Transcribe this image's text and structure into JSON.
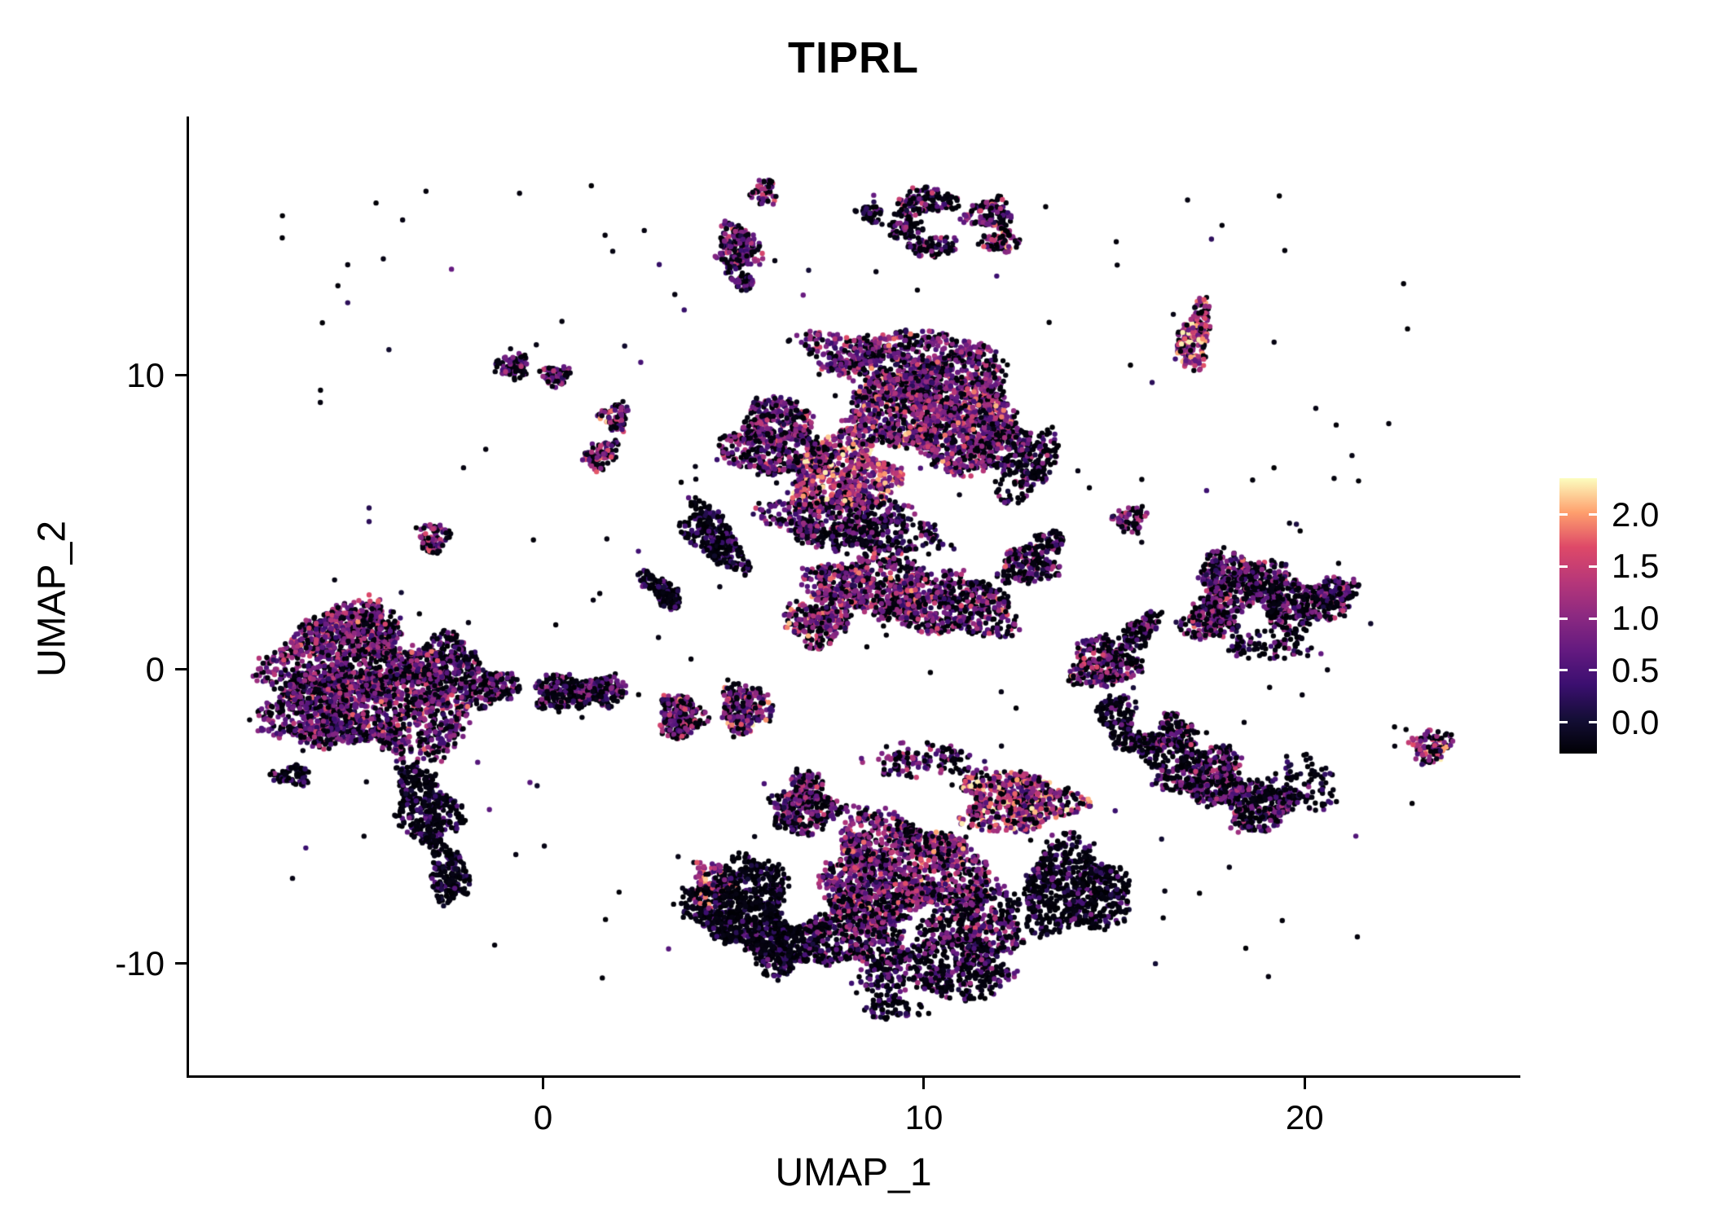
{
  "title": "TIPRL",
  "axes": {
    "x": {
      "label": "UMAP_1",
      "range": [
        -9.3,
        25.6
      ],
      "ticks": [
        0,
        10,
        20
      ],
      "tick_labels": [
        "0",
        "10",
        "20"
      ]
    },
    "y": {
      "label": "UMAP_2",
      "range": [
        -13.8,
        18.8
      ],
      "ticks": [
        -10,
        0,
        10
      ],
      "tick_labels": [
        "-10",
        "0",
        "10"
      ]
    }
  },
  "legend": {
    "tick_values": [
      2.0,
      1.5,
      1.0,
      0.5,
      0.0
    ],
    "tick_labels": [
      "2.0",
      "1.5",
      "1.0",
      "0.5",
      "0.0"
    ],
    "range_top": 2.35,
    "range_bottom": -0.3
  },
  "chart_data": {
    "type": "scatter",
    "title": "TIPRL",
    "xlabel": "UMAP_1",
    "ylabel": "UMAP_2",
    "xlim": [
      -9.3,
      25.6
    ],
    "ylim": [
      -13.8,
      18.8
    ],
    "grid": false,
    "legend_position": "right",
    "colorbar": {
      "ticks": [
        2.0,
        1.5,
        1.0,
        0.5,
        0.0
      ],
      "domain": [
        0,
        2.25
      ]
    },
    "color_scale": {
      "name": "magma",
      "stops": [
        [
          0,
          "#000004"
        ],
        [
          0.125,
          "#140e36"
        ],
        [
          0.25,
          "#3b0f70"
        ],
        [
          0.375,
          "#641a80"
        ],
        [
          0.5,
          "#8c2981"
        ],
        [
          0.625,
          "#b73779"
        ],
        [
          0.75,
          "#de4968"
        ],
        [
          0.875,
          "#fe9f6d"
        ],
        [
          1,
          "#fcfdbf"
        ]
      ]
    },
    "point_radius_px": 3.2,
    "cluster_fields": [
      "cx",
      "cy",
      "rx",
      "ry",
      "rot_deg",
      "n",
      "zero_frac",
      "expr_mean"
    ],
    "clusters": [
      [
        -5.2,
        0.4,
        1.9,
        1.6,
        0,
        900,
        0.35,
        0.95
      ],
      [
        -3.9,
        -1.3,
        1.9,
        1.7,
        0,
        950,
        0.35,
        0.95
      ],
      [
        -6.0,
        -1.4,
        1.3,
        1.3,
        0,
        500,
        0.4,
        0.9
      ],
      [
        -4.9,
        1.5,
        1.1,
        0.8,
        0,
        300,
        0.35,
        1.0
      ],
      [
        -2.6,
        0.2,
        1.0,
        0.9,
        0,
        280,
        0.5,
        0.85
      ],
      [
        -3.1,
        -4.6,
        0.75,
        1.3,
        15,
        380,
        0.72,
        0.55
      ],
      [
        -2.5,
        -6.9,
        0.5,
        1.0,
        10,
        200,
        0.8,
        0.5
      ],
      [
        -6.6,
        -3.6,
        0.5,
        0.3,
        0,
        80,
        0.65,
        0.7
      ],
      [
        -1.6,
        -0.6,
        0.9,
        0.7,
        0,
        220,
        0.55,
        0.8
      ],
      [
        0.6,
        -0.8,
        0.85,
        0.6,
        0,
        260,
        0.6,
        0.75
      ],
      [
        1.6,
        -0.7,
        0.6,
        0.5,
        0,
        150,
        0.55,
        0.8
      ],
      [
        -2.9,
        4.5,
        0.4,
        0.55,
        0,
        80,
        0.4,
        0.9
      ],
      [
        -0.8,
        10.3,
        0.45,
        0.4,
        0,
        100,
        0.45,
        0.9
      ],
      [
        0.3,
        10.0,
        0.4,
        0.35,
        0,
        80,
        0.45,
        0.9
      ],
      [
        1.9,
        8.6,
        0.35,
        0.5,
        0,
        70,
        0.35,
        1.1
      ],
      [
        1.5,
        7.3,
        0.45,
        0.55,
        -30,
        90,
        0.4,
        1.0
      ],
      [
        5.8,
        16.2,
        0.3,
        0.45,
        0,
        55,
        0.35,
        1.0
      ],
      [
        5.1,
        14.3,
        0.55,
        0.8,
        0,
        210,
        0.3,
        0.95
      ],
      [
        5.3,
        13.2,
        0.3,
        0.3,
        0,
        45,
        0.5,
        0.8
      ],
      [
        10.1,
        15.9,
        0.8,
        0.45,
        0,
        130,
        0.5,
        0.9
      ],
      [
        11.7,
        15.5,
        0.6,
        0.5,
        0,
        110,
        0.45,
        1.0
      ],
      [
        12.0,
        14.6,
        0.5,
        0.4,
        0,
        80,
        0.45,
        1.1
      ],
      [
        10.2,
        14.4,
        0.7,
        0.4,
        0,
        80,
        0.6,
        0.8
      ],
      [
        9.5,
        15.1,
        0.4,
        0.5,
        0,
        70,
        0.55,
        0.85
      ],
      [
        8.6,
        15.5,
        0.35,
        0.35,
        0,
        45,
        0.5,
        0.9
      ],
      [
        17.1,
        11.3,
        0.4,
        1.15,
        -12,
        230,
        0.25,
        1.3
      ],
      [
        10.4,
        8.8,
        2.1,
        1.8,
        0,
        1800,
        0.3,
        1.05
      ],
      [
        7.9,
        6.6,
        1.35,
        1.25,
        0,
        750,
        0.18,
        1.3
      ],
      [
        6.1,
        7.8,
        1.25,
        1.3,
        0,
        600,
        0.4,
        0.9
      ],
      [
        9.0,
        10.7,
        2.2,
        0.85,
        0,
        500,
        0.35,
        0.95
      ],
      [
        7.6,
        5.1,
        1.8,
        0.8,
        0,
        380,
        0.5,
        0.85
      ],
      [
        12.5,
        7.2,
        0.95,
        1.3,
        0,
        320,
        0.6,
        0.75
      ],
      [
        4.5,
        4.5,
        0.55,
        1.3,
        30,
        300,
        0.68,
        0.55
      ],
      [
        3.1,
        2.7,
        0.3,
        0.8,
        40,
        140,
        0.8,
        0.45
      ],
      [
        8.8,
        4.6,
        1.8,
        0.7,
        0,
        220,
        0.55,
        0.8
      ],
      [
        8.6,
        2.9,
        1.6,
        1.05,
        0,
        620,
        0.35,
        1.0
      ],
      [
        10.9,
        2.1,
        1.5,
        1.0,
        0,
        520,
        0.4,
        0.95
      ],
      [
        7.2,
        1.6,
        0.85,
        0.7,
        0,
        260,
        0.38,
        1.1
      ],
      [
        12.7,
        3.5,
        0.75,
        0.65,
        0,
        190,
        0.5,
        0.9
      ],
      [
        13.3,
        4.3,
        0.35,
        0.4,
        0,
        60,
        0.55,
        0.85
      ],
      [
        6.9,
        4.7,
        0.3,
        0.25,
        0,
        35,
        0.5,
        0.9
      ],
      [
        3.6,
        -1.6,
        0.6,
        0.75,
        0,
        210,
        0.42,
        1.0
      ],
      [
        5.3,
        -1.3,
        0.65,
        0.85,
        0,
        230,
        0.38,
        1.1
      ],
      [
        6.9,
        -3.9,
        0.4,
        0.6,
        0,
        100,
        0.4,
        0.95
      ],
      [
        5.2,
        -8.0,
        1.3,
        1.5,
        0,
        750,
        0.8,
        0.5
      ],
      [
        6.3,
        -9.4,
        1.0,
        0.9,
        0,
        380,
        0.75,
        0.55
      ],
      [
        9.4,
        -6.8,
        2.1,
        1.7,
        0,
        1400,
        0.35,
        1.0
      ],
      [
        8.2,
        -8.9,
        1.3,
        1.2,
        0,
        520,
        0.5,
        0.9
      ],
      [
        12.4,
        -4.5,
        1.5,
        1.0,
        0,
        620,
        0.25,
        1.25
      ],
      [
        13.9,
        -7.5,
        1.4,
        1.5,
        0,
        700,
        0.75,
        0.6
      ],
      [
        10.4,
        -10.2,
        1.9,
        1.0,
        0,
        520,
        0.65,
        0.7
      ],
      [
        6.9,
        -4.8,
        0.95,
        0.75,
        0,
        260,
        0.5,
        0.9
      ],
      [
        11.4,
        -8.7,
        1.3,
        1.1,
        0,
        420,
        0.55,
        0.85
      ],
      [
        9.2,
        -11.5,
        0.8,
        0.4,
        0,
        70,
        0.8,
        0.5
      ],
      [
        10.0,
        -3.1,
        1.5,
        0.6,
        0,
        130,
        0.5,
        0.9
      ],
      [
        4.4,
        -7.3,
        0.5,
        0.8,
        0,
        90,
        0.3,
        1.2
      ],
      [
        14.7,
        0.2,
        0.85,
        0.85,
        0,
        300,
        0.42,
        1.0
      ],
      [
        15.7,
        1.3,
        0.35,
        0.8,
        -35,
        130,
        0.6,
        0.8
      ],
      [
        15.1,
        -1.7,
        0.45,
        1.0,
        10,
        150,
        0.72,
        0.6
      ],
      [
        15.9,
        -2.7,
        0.4,
        0.7,
        30,
        90,
        0.75,
        0.6
      ],
      [
        18.3,
        3.0,
        1.15,
        0.95,
        0,
        480,
        0.5,
        0.9
      ],
      [
        19.9,
        2.2,
        1.05,
        0.85,
        0,
        360,
        0.55,
        0.85
      ],
      [
        17.5,
        1.6,
        0.75,
        0.65,
        0,
        200,
        0.5,
        0.9
      ],
      [
        20.9,
        2.7,
        0.5,
        0.45,
        0,
        90,
        0.55,
        0.85
      ],
      [
        19.0,
        0.8,
        1.2,
        0.5,
        0,
        90,
        0.7,
        0.7
      ],
      [
        17.4,
        -3.6,
        1.05,
        0.95,
        0,
        430,
        0.55,
        0.85
      ],
      [
        18.8,
        -4.6,
        0.95,
        0.85,
        0,
        320,
        0.6,
        0.8
      ],
      [
        16.6,
        -2.3,
        0.55,
        0.75,
        0,
        160,
        0.6,
        0.8
      ],
      [
        19.9,
        -3.9,
        0.9,
        1.0,
        0,
        90,
        0.78,
        0.6
      ],
      [
        23.3,
        -2.6,
        0.5,
        0.6,
        -20,
        120,
        0.28,
        1.15
      ],
      [
        15.4,
        5.1,
        0.4,
        0.45,
        0,
        75,
        0.45,
        0.95
      ]
    ],
    "background_scatter": {
      "n": 200,
      "x_range": [
        -7,
        23
      ],
      "y_range": [
        -11,
        16.5
      ],
      "zero_frac": 0.75,
      "expr_mean": 0.7
    }
  }
}
